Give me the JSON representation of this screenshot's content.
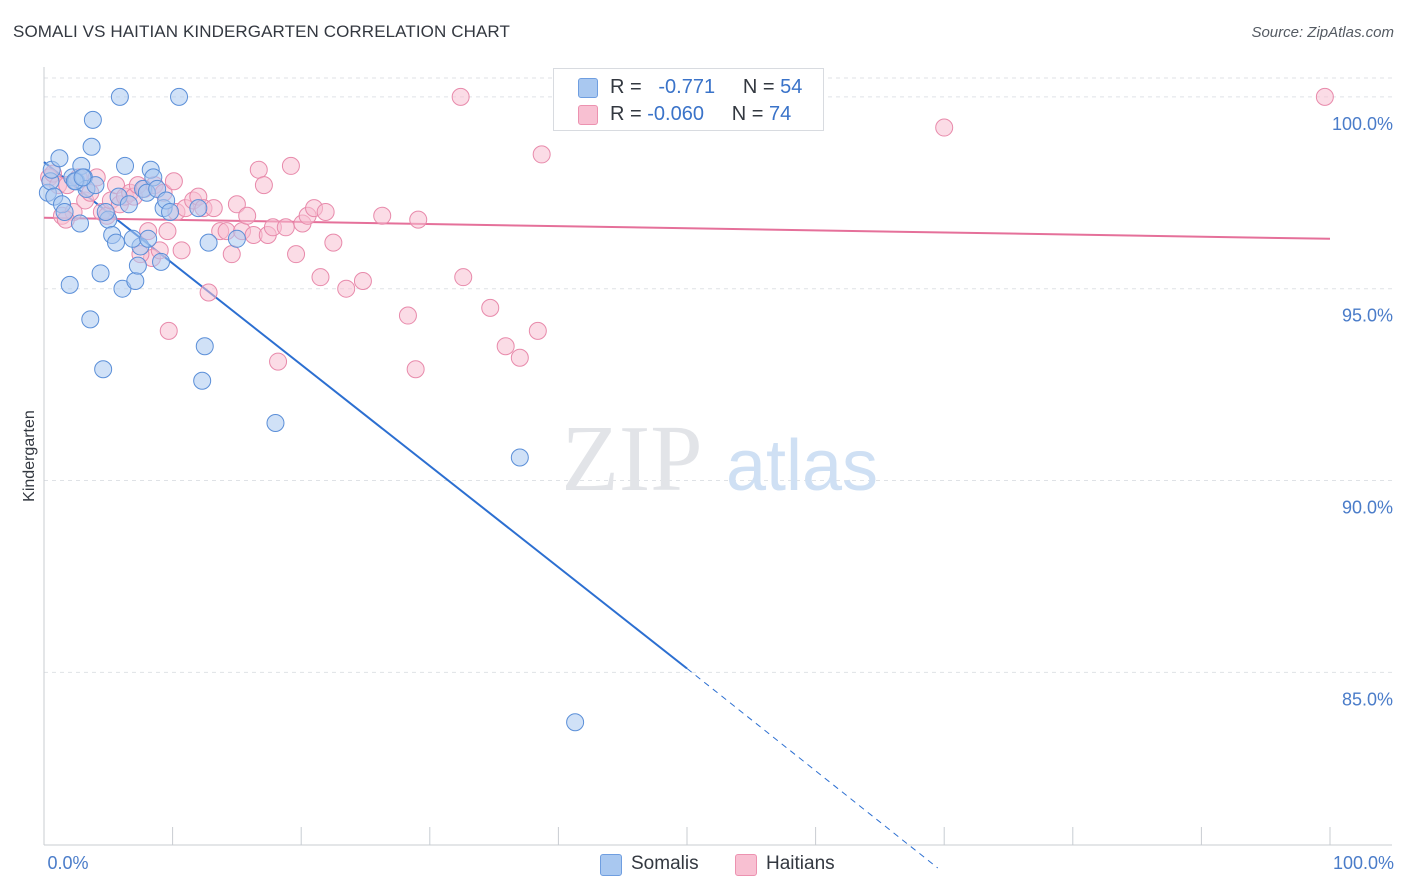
{
  "title": "SOMALI VS HAITIAN KINDERGARTEN CORRELATION CHART",
  "source": "Source: ZipAtlas.com",
  "watermark": {
    "zip": "ZIP",
    "atlas": "atlas"
  },
  "legend": {
    "r_label": "R =",
    "n_label": "N =",
    "rows": [
      {
        "r": "-0.771",
        "n": "54",
        "color": "#a9c8f0",
        "border": "#6f9ee0"
      },
      {
        "r": "-0.060",
        "n": "74",
        "color": "#f8c0d2",
        "border": "#ec92b0"
      }
    ]
  },
  "chart_data": {
    "type": "scatter",
    "xlabel": "",
    "ylabel": "Kindergarten",
    "xlim": [
      0,
      100
    ],
    "ylim": [
      80.5,
      100.7
    ],
    "x_tick_labels": [
      {
        "value": 0,
        "label": "0.0%"
      },
      {
        "value": 100,
        "label": "100.0%"
      }
    ],
    "y_ticks": [
      {
        "value": 85,
        "label": "85.0%"
      },
      {
        "value": 90,
        "label": "90.0%"
      },
      {
        "value": 95,
        "label": "95.0%"
      },
      {
        "value": 100,
        "label": "100.0%"
      }
    ],
    "x_minor_ticks": [
      0,
      10,
      20,
      30,
      40,
      50,
      60,
      70,
      80,
      90,
      100
    ],
    "grid": "horizontal-dashed",
    "series": [
      {
        "name": "Somalis",
        "color": "#a9c8f0",
        "stroke": "#5b8fd8",
        "line_color": "#2c6fd1",
        "trend": {
          "x0": 0,
          "y0": 98.3,
          "x1": 50,
          "y1": 85.1,
          "dash_to_x": 69.5,
          "dash_to_y": 79.9
        },
        "points": [
          [
            0.3,
            97.5
          ],
          [
            0.5,
            97.8
          ],
          [
            0.6,
            98.1
          ],
          [
            0.8,
            97.4
          ],
          [
            1.2,
            98.4
          ],
          [
            1.4,
            97.2
          ],
          [
            1.6,
            97.0
          ],
          [
            2.0,
            95.1
          ],
          [
            2.2,
            97.9
          ],
          [
            2.5,
            97.8
          ],
          [
            2.8,
            96.7
          ],
          [
            2.9,
            98.2
          ],
          [
            3.1,
            97.9
          ],
          [
            3.3,
            97.6
          ],
          [
            3.6,
            94.2
          ],
          [
            3.7,
            98.7
          ],
          [
            3.8,
            99.4
          ],
          [
            4.0,
            97.7
          ],
          [
            4.4,
            95.4
          ],
          [
            4.6,
            92.9
          ],
          [
            5.0,
            96.8
          ],
          [
            5.3,
            96.4
          ],
          [
            5.6,
            96.2
          ],
          [
            5.8,
            97.4
          ],
          [
            5.9,
            100.0
          ],
          [
            6.1,
            95.0
          ],
          [
            6.3,
            98.2
          ],
          [
            6.6,
            97.2
          ],
          [
            7.1,
            95.2
          ],
          [
            7.3,
            95.6
          ],
          [
            7.5,
            96.1
          ],
          [
            7.7,
            97.6
          ],
          [
            8.0,
            97.5
          ],
          [
            8.3,
            98.1
          ],
          [
            8.5,
            97.9
          ],
          [
            8.8,
            97.6
          ],
          [
            9.1,
            95.7
          ],
          [
            9.3,
            97.1
          ],
          [
            9.5,
            97.3
          ],
          [
            9.8,
            97.0
          ],
          [
            10.5,
            100.0
          ],
          [
            12.0,
            97.1
          ],
          [
            12.3,
            92.6
          ],
          [
            12.5,
            93.5
          ],
          [
            12.8,
            96.2
          ],
          [
            15.0,
            96.3
          ],
          [
            18.0,
            91.5
          ],
          [
            37.0,
            90.6
          ],
          [
            41.3,
            83.7
          ],
          [
            2.4,
            97.8
          ],
          [
            4.8,
            97.0
          ],
          [
            6.9,
            96.3
          ],
          [
            8.1,
            96.3
          ],
          [
            3.0,
            97.9
          ]
        ]
      },
      {
        "name": "Haitians",
        "color": "#f8c0d2",
        "stroke": "#e88aab",
        "line_color": "#e5709a",
        "trend": {
          "x0": 0,
          "y0": 96.85,
          "x1": 100,
          "y1": 96.3
        },
        "points": [
          [
            0.4,
            97.9
          ],
          [
            0.7,
            98.0
          ],
          [
            1.1,
            97.7
          ],
          [
            1.4,
            96.9
          ],
          [
            1.8,
            97.7
          ],
          [
            2.3,
            97.0
          ],
          [
            2.7,
            97.9
          ],
          [
            3.2,
            97.3
          ],
          [
            3.6,
            97.5
          ],
          [
            4.1,
            97.9
          ],
          [
            4.5,
            97.0
          ],
          [
            4.9,
            96.9
          ],
          [
            5.2,
            97.3
          ],
          [
            5.6,
            97.7
          ],
          [
            5.9,
            97.2
          ],
          [
            6.3,
            97.4
          ],
          [
            6.7,
            97.5
          ],
          [
            7.0,
            97.4
          ],
          [
            7.3,
            97.7
          ],
          [
            7.8,
            97.6
          ],
          [
            8.1,
            96.5
          ],
          [
            8.4,
            95.8
          ],
          [
            8.6,
            97.7
          ],
          [
            9.0,
            96.0
          ],
          [
            9.3,
            97.5
          ],
          [
            9.6,
            96.5
          ],
          [
            10.1,
            97.8
          ],
          [
            10.3,
            97.0
          ],
          [
            10.7,
            96.0
          ],
          [
            11.0,
            97.1
          ],
          [
            11.6,
            97.3
          ],
          [
            12.0,
            97.4
          ],
          [
            12.4,
            97.1
          ],
          [
            12.8,
            94.9
          ],
          [
            13.2,
            97.1
          ],
          [
            13.7,
            96.5
          ],
          [
            14.2,
            96.5
          ],
          [
            14.6,
            95.9
          ],
          [
            15.0,
            97.2
          ],
          [
            15.4,
            96.5
          ],
          [
            15.8,
            96.9
          ],
          [
            16.3,
            96.4
          ],
          [
            16.7,
            98.1
          ],
          [
            17.1,
            97.7
          ],
          [
            17.4,
            96.4
          ],
          [
            17.8,
            96.6
          ],
          [
            18.2,
            93.1
          ],
          [
            18.8,
            96.6
          ],
          [
            19.2,
            98.2
          ],
          [
            19.6,
            95.9
          ],
          [
            20.1,
            96.7
          ],
          [
            20.5,
            96.9
          ],
          [
            21.0,
            97.1
          ],
          [
            21.5,
            95.3
          ],
          [
            21.9,
            97.0
          ],
          [
            22.5,
            96.2
          ],
          [
            23.5,
            95.0
          ],
          [
            24.8,
            95.2
          ],
          [
            26.3,
            96.9
          ],
          [
            28.3,
            94.3
          ],
          [
            28.9,
            92.9
          ],
          [
            29.1,
            96.8
          ],
          [
            32.4,
            100.0
          ],
          [
            32.6,
            95.3
          ],
          [
            34.7,
            94.5
          ],
          [
            35.9,
            93.5
          ],
          [
            37.0,
            93.2
          ],
          [
            38.4,
            93.9
          ],
          [
            38.7,
            98.5
          ],
          [
            70.0,
            99.2
          ],
          [
            99.6,
            100.0
          ],
          [
            9.7,
            93.9
          ],
          [
            1.7,
            96.8
          ],
          [
            7.5,
            95.9
          ]
        ]
      }
    ]
  },
  "bottom_legend": [
    {
      "label": "Somalis",
      "color": "#a9c8f0",
      "border": "#6f9ee0"
    },
    {
      "label": "Haitians",
      "color": "#f8c0d2",
      "border": "#ec92b0"
    }
  ]
}
